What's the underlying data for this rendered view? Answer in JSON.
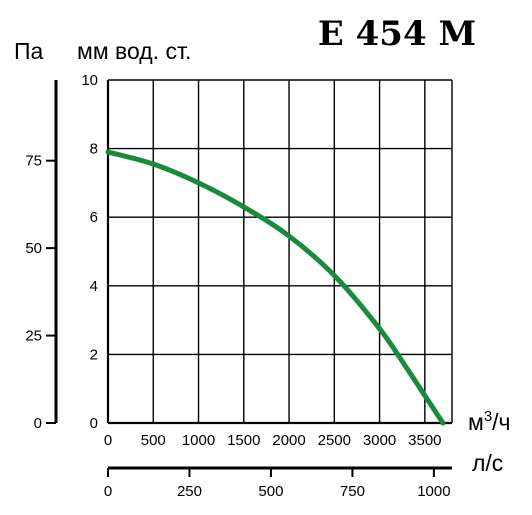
{
  "chart_data": {
    "type": "line",
    "title": "E 454 M",
    "units": {
      "pa": "Па",
      "mm": "мм вод. ст.",
      "m3h": "м3/ч",
      "m3h_base": "м",
      "m3h_sup": "3",
      "m3h_tail": "/ч",
      "ls": "л/с"
    },
    "y_mm_ticks": [
      "0",
      "2",
      "4",
      "6",
      "8",
      "10"
    ],
    "y_pa_ticks": [
      "0",
      "25",
      "50",
      "75"
    ],
    "x_m3h_ticks": [
      "0",
      "500",
      "1000",
      "1500",
      "2000",
      "2500",
      "3000",
      "3500"
    ],
    "x_ls_ticks": [
      "0",
      "250",
      "500",
      "750",
      "1000"
    ],
    "xlim": [
      0,
      3800
    ],
    "ylim": [
      0,
      10
    ],
    "grid": true,
    "series": [
      {
        "color": "#1a8a3c",
        "x": [
          0,
          500,
          1000,
          1500,
          2000,
          2500,
          3000,
          3300,
          3500,
          3700
        ],
        "y": [
          7.9,
          7.55,
          7.0,
          6.3,
          5.45,
          4.3,
          2.75,
          1.6,
          0.8,
          0.0
        ]
      }
    ]
  }
}
